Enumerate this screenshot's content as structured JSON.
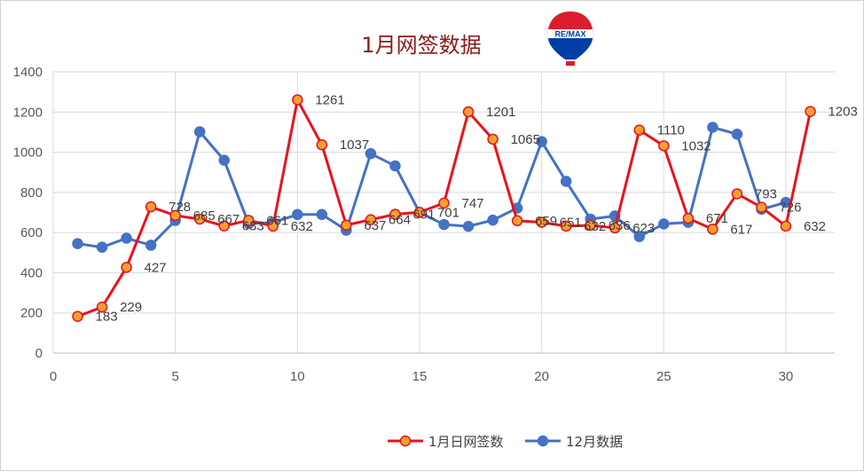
{
  "chart_data": {
    "type": "line",
    "title": "1月网签数据",
    "xlabel": "",
    "ylabel": "",
    "xlim": [
      0,
      32
    ],
    "ylim": [
      0,
      1400
    ],
    "xticks": [
      0,
      5,
      10,
      15,
      20,
      25,
      30
    ],
    "yticks": [
      0,
      200,
      400,
      600,
      800,
      1000,
      1200,
      1400
    ],
    "grid": true,
    "legend_position": "bottom",
    "series": [
      {
        "name": "1月日网签数",
        "color": "#e8141b",
        "marker_fill": "#f4a033",
        "show_labels": true,
        "x": [
          1,
          2,
          3,
          4,
          5,
          6,
          7,
          8,
          9,
          10,
          11,
          12,
          13,
          14,
          15,
          16,
          17,
          18,
          19,
          20,
          21,
          22,
          23,
          24,
          25,
          26,
          27,
          28,
          29,
          30,
          31
        ],
        "values": [
          183,
          229,
          427,
          728,
          685,
          667,
          633,
          661,
          632,
          1261,
          1037,
          637,
          664,
          691,
          701,
          747,
          1201,
          1065,
          659,
          651,
          632,
          636,
          623,
          1110,
          1032,
          671,
          617,
          793,
          726,
          632,
          1203
        ]
      },
      {
        "name": "12月数据",
        "color": "#4472c4",
        "marker_fill": "#4472c4",
        "show_labels": false,
        "x": [
          1,
          2,
          3,
          4,
          5,
          6,
          7,
          8,
          9,
          10,
          11,
          12,
          13,
          14,
          15,
          16,
          17,
          18,
          19,
          20,
          21,
          22,
          23,
          24,
          25,
          26,
          27,
          28,
          29,
          30
        ],
        "values": [
          545,
          527,
          572,
          537,
          660,
          1102,
          960,
          645,
          650,
          690,
          690,
          612,
          993,
          932,
          700,
          640,
          631,
          662,
          722,
          1053,
          855,
          667,
          683,
          580,
          643,
          651,
          1124,
          1090,
          716,
          750
        ]
      }
    ]
  },
  "logo": {
    "text": "RE/MAX",
    "colors": {
      "red": "#dc1c2e",
      "blue": "#003da5",
      "white": "#ffffff"
    }
  }
}
